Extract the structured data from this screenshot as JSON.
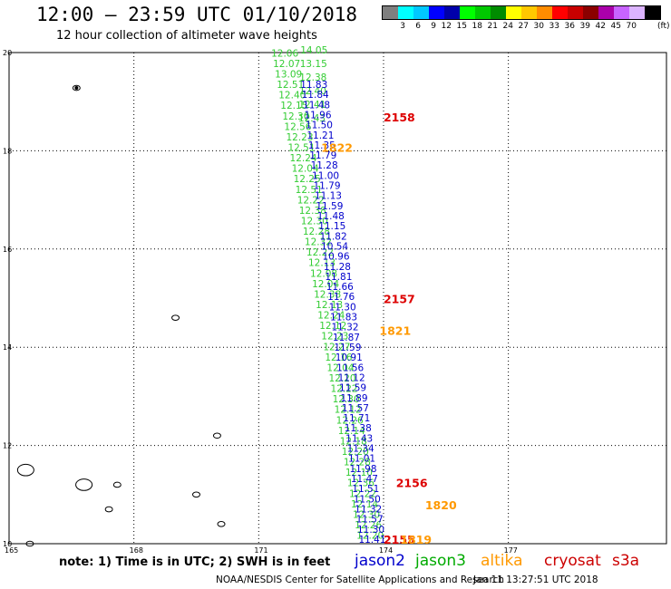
{
  "header": {
    "title": "12:00 – 23:59 UTC 01/10/2018",
    "subtitle": "12 hour collection of altimeter wave heights"
  },
  "scale": {
    "colors": [
      "#7f7f7f",
      "#00ffff",
      "#00c8ff",
      "#0000ff",
      "#0000aa",
      "#00ff00",
      "#00c800",
      "#008c00",
      "#ffff00",
      "#ffc800",
      "#ff8c00",
      "#ff0000",
      "#c80000",
      "#8b0000",
      "#aa00aa",
      "#c864ff",
      "#dcb4ff",
      "#000000"
    ],
    "labels": [
      "3",
      "6",
      "9",
      "12",
      "15",
      "18",
      "21",
      "24",
      "27",
      "30",
      "33",
      "36",
      "39",
      "42",
      "45",
      "70"
    ],
    "unit": "(ft)"
  },
  "map": {
    "lat_labels": [
      "20",
      "18",
      "16",
      "14",
      "12",
      "10"
    ],
    "lon_labels": [
      "165",
      "168",
      "171",
      "174",
      "177"
    ],
    "swath_labels": [
      {
        "t": "2158",
        "lat": 18.6,
        "lon": 174.0,
        "color": "#dd0000"
      },
      {
        "t": "1822",
        "lat": 17.98,
        "lon": 172.5,
        "color": "#ff9900"
      },
      {
        "t": "2157",
        "lat": 14.9,
        "lon": 174.0,
        "color": "#dd0000"
      },
      {
        "t": "1821",
        "lat": 14.25,
        "lon": 173.9,
        "color": "#ff9900"
      },
      {
        "t": "2156",
        "lat": 11.15,
        "lon": 174.3,
        "color": "#dd0000"
      },
      {
        "t": "1820",
        "lat": 10.7,
        "lon": 175.0,
        "color": "#ff9900"
      },
      {
        "t": "2155",
        "lat": 10.0,
        "lon": 174.0,
        "color": "#dd0000"
      },
      {
        "t": "1819",
        "lat": 10.0,
        "lon": 174.4,
        "color": "#ff9900"
      }
    ],
    "green_values": [
      "12.06",
      "12.07",
      "13.09",
      "12.51",
      "12.40",
      "12.15",
      "12.30",
      "12.56",
      "12.23",
      "12.51",
      "12.24",
      "12.04",
      "12.25",
      "12.51",
      "12.22",
      "12.38",
      "12.30",
      "12.28",
      "12.32",
      "12.22",
      "12.13",
      "12.08",
      "12.04",
      "12.38",
      "12.13",
      "12.24",
      "12.12",
      "12.23",
      "12.27",
      "12.16",
      "12.04",
      "12.20",
      "12.22",
      "12.30",
      "12.12",
      "12.26",
      "12.14",
      "12.18",
      "12.20",
      "12.28",
      "12.10",
      "12.36",
      "12.22",
      "12.14",
      "12.30",
      "12.26",
      "12.20"
    ],
    "jason3_values": [
      "14.05",
      "13.15",
      "12.38",
      "12.40",
      "12.41",
      "12.43"
    ],
    "blue_values": [
      "11.83",
      "11.84",
      "11.48",
      "11.96",
      "11.50",
      "11.21",
      "11.35",
      "11.79",
      "11.28",
      "11.00",
      "11.79",
      "11.13",
      "11.59",
      "11.48",
      "11.15",
      "11.82",
      "10.54",
      "10.96",
      "11.28",
      "11.81",
      "11.66",
      "11.76",
      "11.30",
      "11.83",
      "11.32",
      "11.87",
      "11.59",
      "10.91",
      "11.56",
      "11.12",
      "11.59",
      "11.89",
      "11.57",
      "11.71",
      "11.38",
      "11.43",
      "11.34",
      "11.01",
      "11.98",
      "11.47",
      "11.51",
      "11.50",
      "11.32",
      "11.57",
      "11.30",
      "11.41"
    ],
    "islands": [
      {
        "name": "island-wake",
        "lat": 19.28,
        "lon": 166.62
      },
      {
        "name": "island-enewetak-reef",
        "lat": 11.5,
        "lon": 165.4
      },
      {
        "name": "island-bikini-reef",
        "lat": 11.2,
        "lon": 166.8
      },
      {
        "name": "island-rongelap",
        "lat": 11.2,
        "lon": 167.6
      },
      {
        "name": "island-ujae",
        "lat": 10.7,
        "lon": 167.4
      },
      {
        "name": "island-small-north",
        "lat": 14.6,
        "lon": 169.0
      },
      {
        "name": "island-small-mid",
        "lat": 12.2,
        "lon": 170.0
      },
      {
        "name": "island-small-east",
        "lat": 11.0,
        "lon": 169.5
      },
      {
        "name": "island-southeast",
        "lat": 10.4,
        "lon": 170.1
      },
      {
        "name": "island-southwest",
        "lat": 10.0,
        "lon": 165.5
      }
    ]
  },
  "legend": {
    "note": "note: 1) Time is in UTC; 2) SWH is in feet",
    "sats": [
      {
        "name": "jason2",
        "color": "#0000cc"
      },
      {
        "name": "jason3",
        "color": "#00aa00"
      },
      {
        "name": "altika",
        "color": "#ff9900"
      },
      {
        "name": "cryosat",
        "color": "#cc0000"
      },
      {
        "name": "s3a",
        "color": "#cc0000"
      }
    ]
  },
  "footer": {
    "credit": "NOAA/NESDIS Center for Satellite Applications and Research",
    "timestamp": "Jan 11 13:27:51 UTC 2018"
  }
}
